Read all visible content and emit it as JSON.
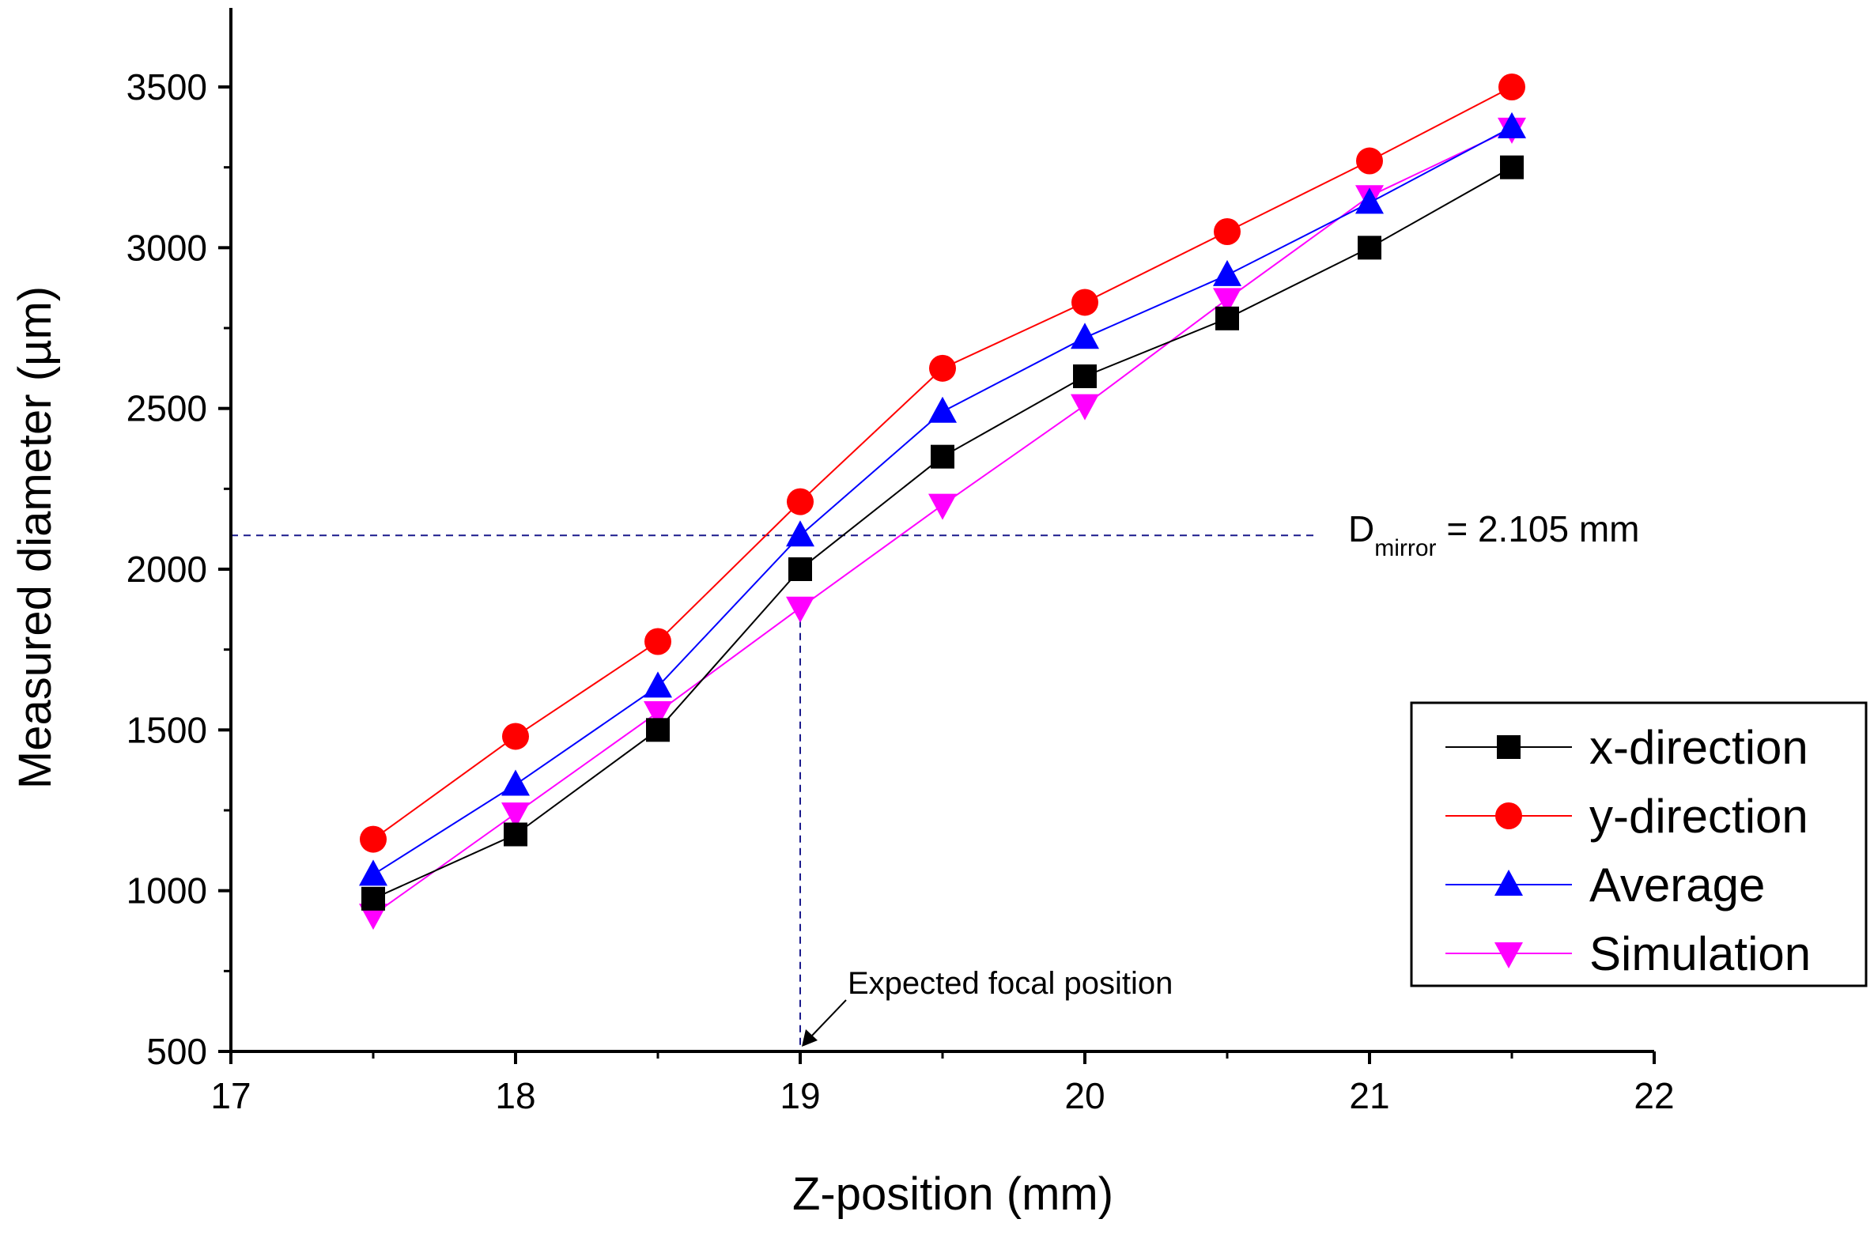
{
  "chart_data": {
    "type": "line",
    "title": "",
    "xlabel": "Z-position (mm)",
    "ylabel": "Measured diameter (µm)",
    "xlim": [
      17,
      22
    ],
    "ylim": [
      500,
      3700
    ],
    "xticks": [
      17,
      18,
      19,
      20,
      21,
      22
    ],
    "yticks": [
      500,
      1000,
      1500,
      2000,
      2500,
      3000,
      3500
    ],
    "x": [
      17.5,
      18,
      18.5,
      19,
      19.5,
      20,
      20.5,
      21,
      21.5
    ],
    "series": [
      {
        "name": "x-direction",
        "color": "#000000",
        "marker": "square",
        "values": [
          975,
          1175,
          1500,
          2000,
          2350,
          2600,
          2780,
          3000,
          3250
        ]
      },
      {
        "name": "y-direction",
        "color": "#ff0000",
        "marker": "circle",
        "values": [
          1160,
          1480,
          1775,
          2210,
          2625,
          2830,
          3050,
          3270,
          3500
        ]
      },
      {
        "name": "Average",
        "color": "#0000ff",
        "marker": "triangle-up",
        "values": [
          1050,
          1330,
          1635,
          2105,
          2490,
          2720,
          2915,
          3140,
          3375
        ]
      },
      {
        "name": "Simulation",
        "color": "#ff00ff",
        "marker": "triangle-down",
        "values": [
          925,
          1240,
          1555,
          1880,
          2200,
          2510,
          2840,
          3160,
          3370
        ]
      }
    ],
    "legend_position": "bottom-right",
    "reference_lines": {
      "horizontal_value": 2105,
      "vertical_value": 19
    },
    "annotations": {
      "mirror_label_main": "D",
      "mirror_label_sub": "mirror",
      "mirror_label_rest": " = 2.105 mm",
      "focal_label": "Expected focal position"
    }
  }
}
